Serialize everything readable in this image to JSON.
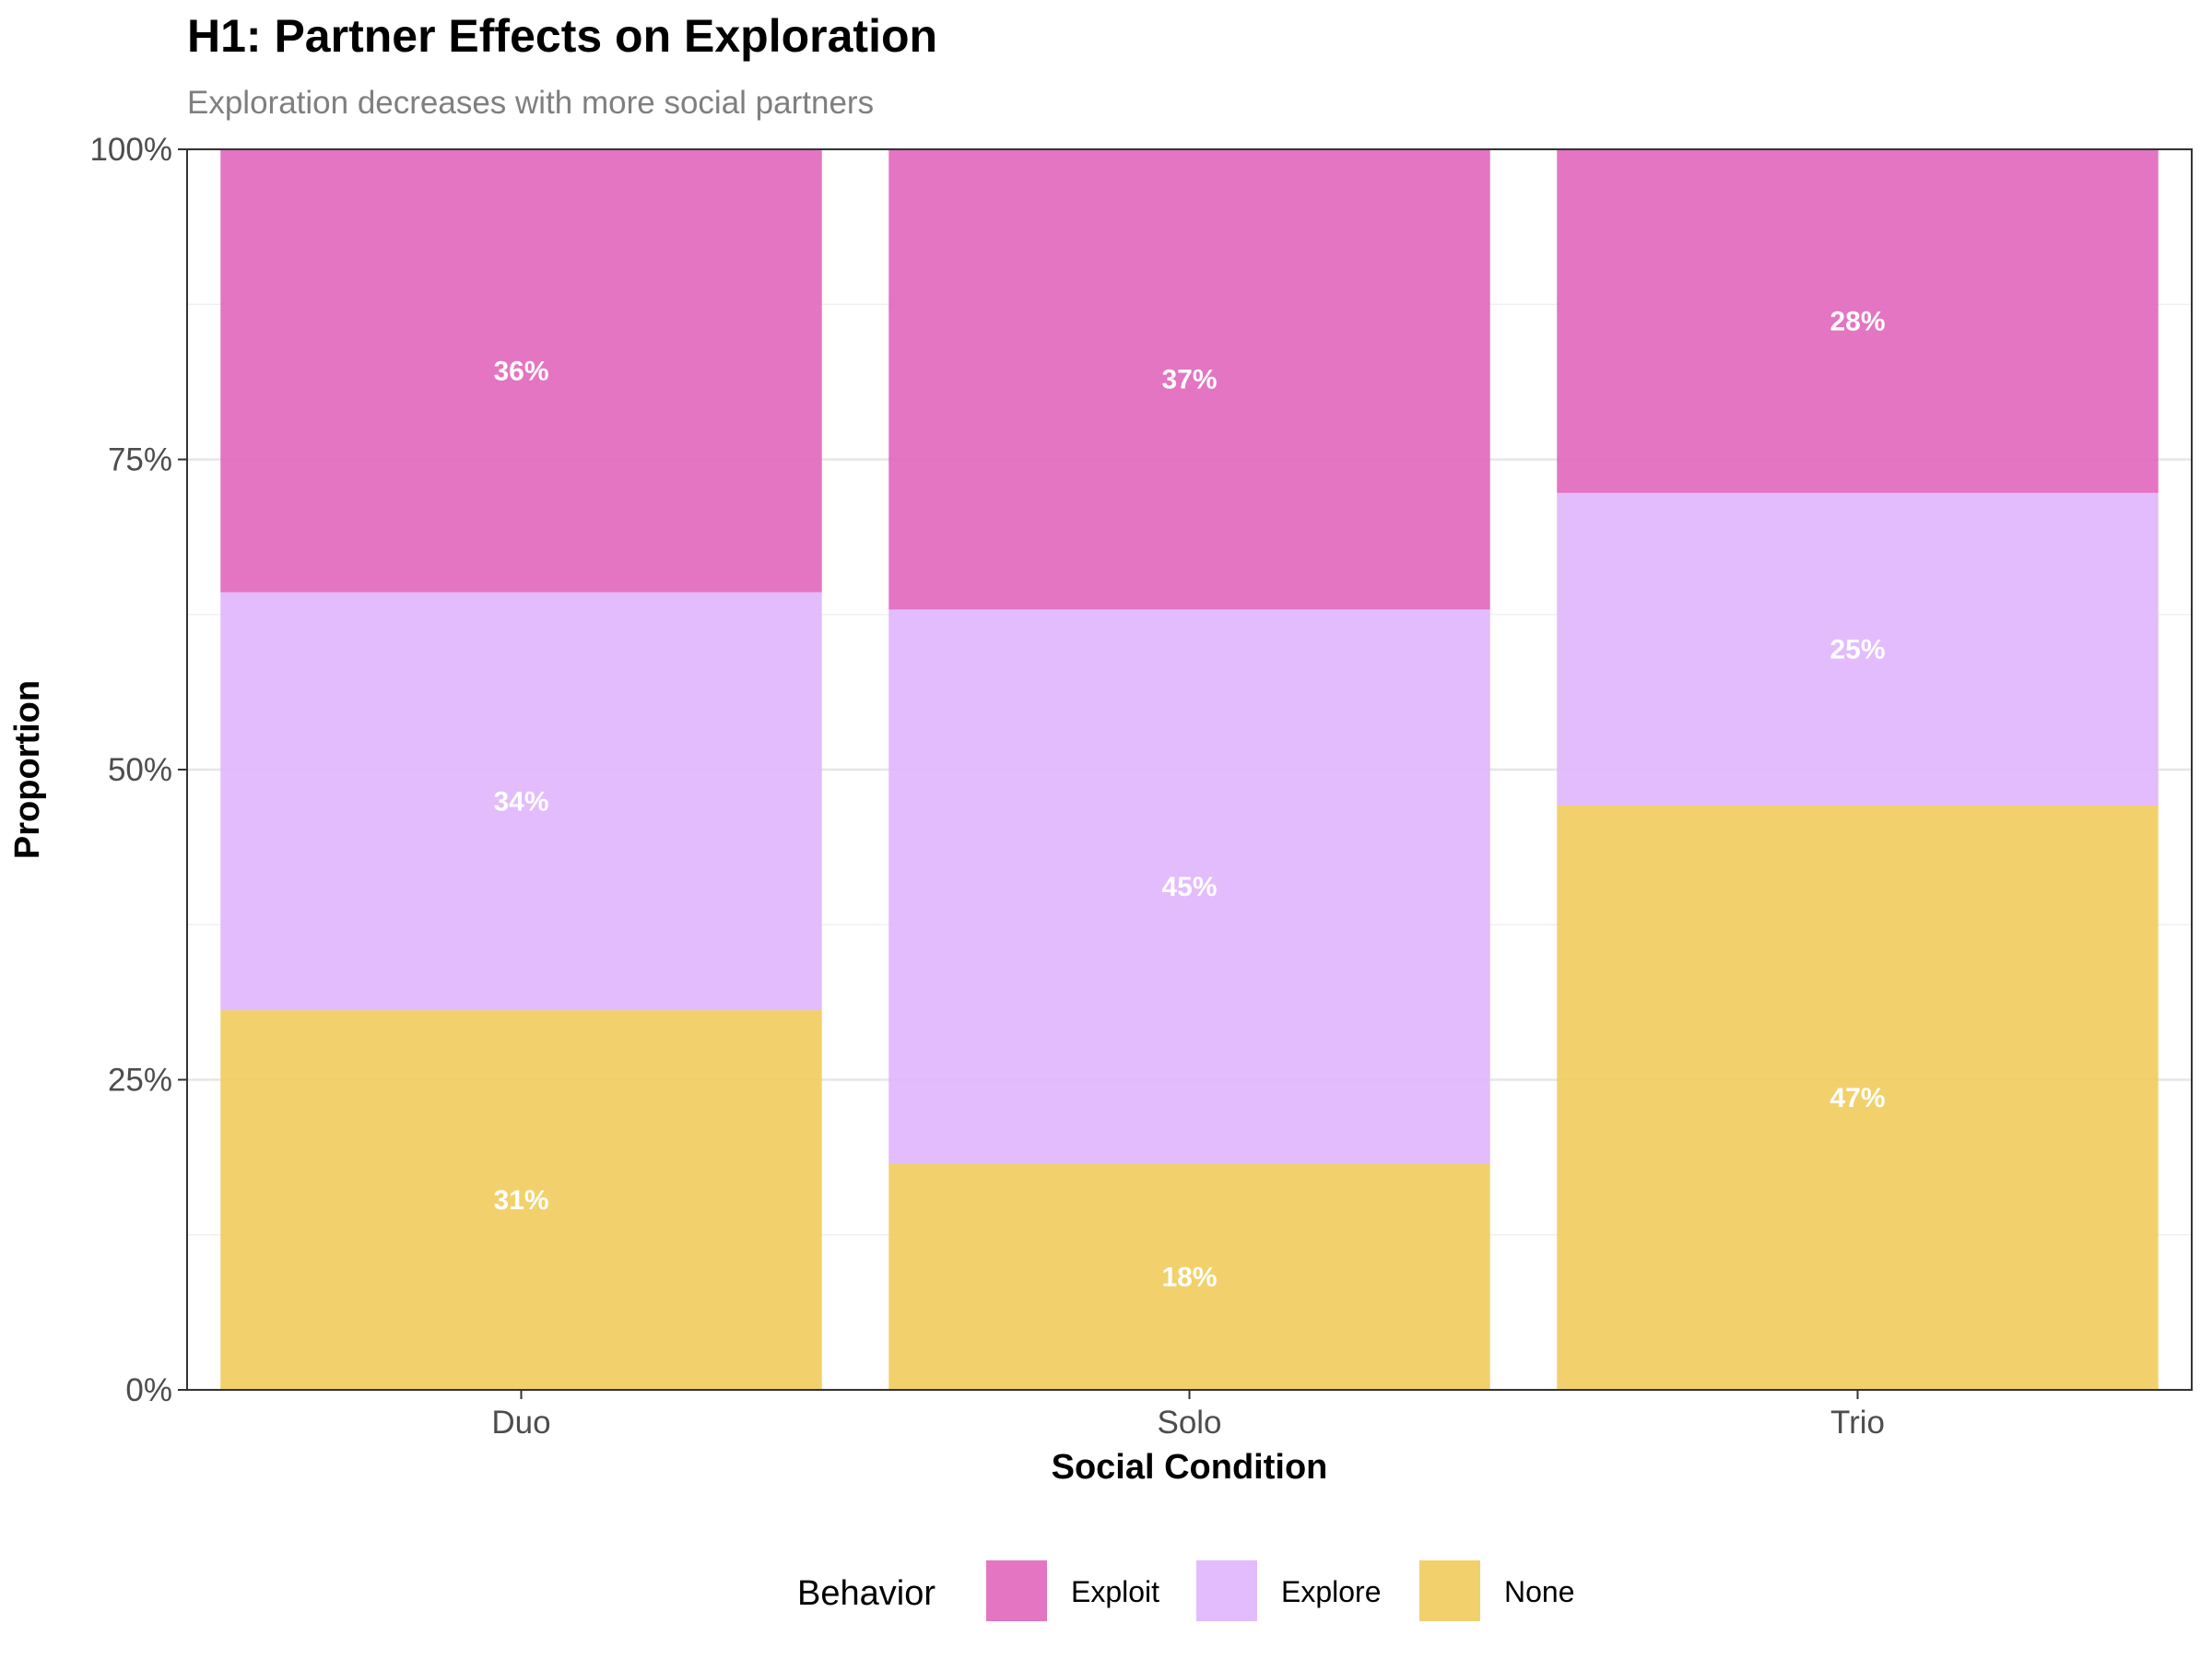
{
  "chart_data": {
    "type": "bar",
    "stacked": true,
    "title": "H1: Partner Effects on Exploration",
    "subtitle": "Exploration decreases with more social partners",
    "xlabel": "Social Condition",
    "ylabel": "Proportion",
    "ylim": [
      0,
      1
    ],
    "y_ticks": [
      "0%",
      "25%",
      "50%",
      "75%",
      "100%"
    ],
    "grid": true,
    "categories": [
      "Duo",
      "Solo",
      "Trio"
    ],
    "series": [
      {
        "name": "None",
        "color": "#f1cc5c",
        "values": [
          0.306,
          0.182,
          0.471
        ],
        "labels": [
          "31%",
          "18%",
          "47%"
        ]
      },
      {
        "name": "Explore",
        "color": "#dfb5fd",
        "values": [
          0.337,
          0.447,
          0.252
        ],
        "labels": [
          "34%",
          "45%",
          "25%"
        ]
      },
      {
        "name": "Exploit",
        "color": "#e066bd",
        "values": [
          0.357,
          0.371,
          0.277
        ],
        "labels": [
          "36%",
          "37%",
          "28%"
        ]
      }
    ],
    "legend": {
      "title": "Behavior",
      "position": "bottom",
      "items": [
        "Exploit",
        "Explore",
        "None"
      ]
    }
  }
}
